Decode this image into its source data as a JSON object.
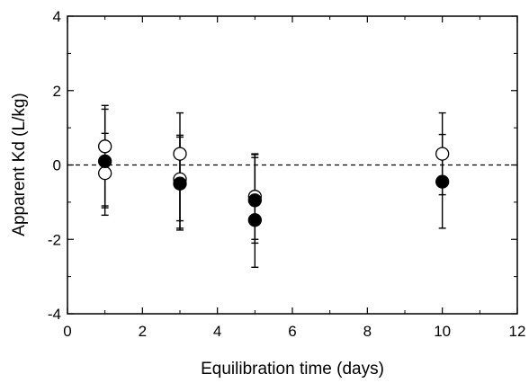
{
  "chart_data": {
    "type": "scatter",
    "title": "",
    "xlabel": "Equilibration time (days)",
    "ylabel": "Apparent Kd (L/kg)",
    "xlim": [
      0,
      12
    ],
    "ylim": [
      -4,
      4
    ],
    "xticks": [
      0,
      2,
      4,
      6,
      8,
      10,
      12
    ],
    "yticks": [
      -4,
      -2,
      0,
      2,
      4
    ],
    "xtick_labels": [
      "0",
      "2",
      "4",
      "6",
      "8",
      "10",
      "12"
    ],
    "ytick_labels": [
      "-4",
      "-2",
      "0",
      "2",
      "4"
    ],
    "grid": false,
    "legend": "none",
    "reference_line": {
      "y": 0,
      "style": "dashed"
    },
    "series": [
      {
        "marker": "open-circle",
        "points": [
          {
            "x": 1,
            "y": 0.5,
            "err_low": -1.15,
            "err_high": 1.6
          },
          {
            "x": 1,
            "y": -0.22,
            "err_low": -1.35,
            "err_high": 0.85
          },
          {
            "x": 3,
            "y": 0.3,
            "err_low": -1.7,
            "err_high": 1.4
          },
          {
            "x": 3,
            "y": -0.38,
            "err_low": -1.5,
            "err_high": 0.75
          },
          {
            "x": 5,
            "y": -0.85,
            "err_low": -2.1,
            "err_high": 0.28
          },
          {
            "x": 10,
            "y": 0.3,
            "err_low": -0.8,
            "err_high": 1.4
          }
        ]
      },
      {
        "marker": "filled-circle",
        "points": [
          {
            "x": 1,
            "y": 0.1,
            "err_low": -1.1,
            "err_high": 1.5
          },
          {
            "x": 3,
            "y": -0.5,
            "err_low": -1.75,
            "err_high": 0.8
          },
          {
            "x": 5,
            "y": -0.95,
            "err_low": -2.0,
            "err_high": 0.3
          },
          {
            "x": 5,
            "y": -1.48,
            "err_low": -2.75,
            "err_high": 0.2
          },
          {
            "x": 10,
            "y": -0.45,
            "err_low": -1.7,
            "err_high": 0.82
          }
        ]
      }
    ]
  }
}
